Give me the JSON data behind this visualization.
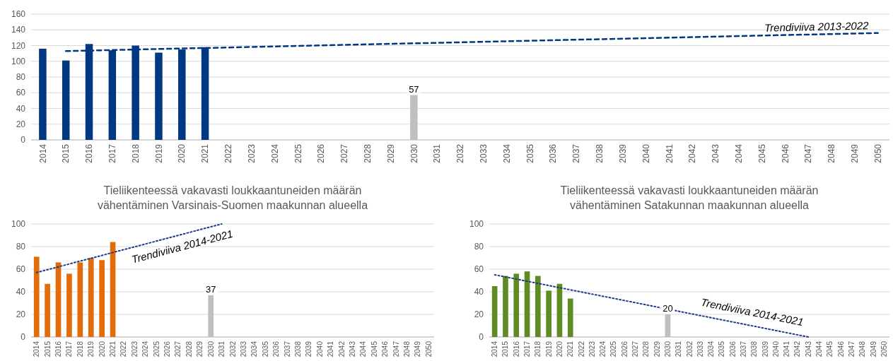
{
  "chart_data": [
    {
      "type": "bar",
      "categories": [
        "2014",
        "2015",
        "2016",
        "2017",
        "2018",
        "2019",
        "2020",
        "2021",
        "2022",
        "2023",
        "2024",
        "2025",
        "2026",
        "2027",
        "2028",
        "2029",
        "2030",
        "2031",
        "2032",
        "2033",
        "2034",
        "2035",
        "2036",
        "2037",
        "2038",
        "2039",
        "2040",
        "2041",
        "2042",
        "2043",
        "2044",
        "2045",
        "2046",
        "2047",
        "2048",
        "2049",
        "2050"
      ],
      "series": [
        {
          "color": "#003882",
          "values": [
            116,
            101,
            122,
            114,
            120,
            111,
            115,
            118,
            null,
            null,
            null,
            null,
            null,
            null,
            null,
            null,
            null,
            null,
            null,
            null,
            null,
            null,
            null,
            null,
            null,
            null,
            null,
            null,
            null,
            null,
            null,
            null,
            null,
            null,
            null,
            null,
            null
          ]
        },
        {
          "color": "#bfbfbf",
          "values": [
            null,
            null,
            null,
            null,
            null,
            null,
            null,
            null,
            null,
            null,
            null,
            null,
            null,
            null,
            null,
            null,
            57,
            null,
            null,
            null,
            null,
            null,
            null,
            null,
            null,
            null,
            null,
            null,
            null,
            null,
            null,
            null,
            null,
            null,
            null,
            null,
            null
          ],
          "value_labels": [
            null,
            null,
            null,
            null,
            null,
            null,
            null,
            null,
            null,
            null,
            null,
            null,
            null,
            null,
            null,
            null,
            "57",
            null,
            null,
            null,
            null,
            null,
            null,
            null,
            null,
            null,
            null,
            null,
            null,
            null,
            null,
            null,
            null,
            null,
            null,
            null,
            null
          ]
        },
        {
          "type": "line",
          "color": "#003882",
          "line_style": "dashed",
          "values": [
            null,
            113,
            null,
            null,
            null,
            null,
            null,
            null,
            null,
            null,
            null,
            null,
            null,
            null,
            null,
            null,
            null,
            null,
            null,
            null,
            null,
            null,
            null,
            null,
            null,
            null,
            null,
            null,
            null,
            null,
            null,
            null,
            null,
            null,
            null,
            null,
            136
          ]
        }
      ],
      "ylim": [
        0,
        160
      ],
      "yticks": [
        0,
        20,
        40,
        60,
        80,
        100,
        120,
        140,
        160
      ],
      "grid": "y",
      "annotations": [
        "Trendiviiva 2013-2022"
      ]
    },
    {
      "type": "bar",
      "title": "Tieliikenteessä vakavasti loukkaantuneiden määrän\nvähentäminen Varsinais-Suomen maakunnan alueella",
      "categories": [
        "2014",
        "2015",
        "2016",
        "2017",
        "2018",
        "2019",
        "2020",
        "2021",
        "2022",
        "2023",
        "2024",
        "2025",
        "2026",
        "2027",
        "2028",
        "2029",
        "2030",
        "2031",
        "2032",
        "2033",
        "2034",
        "2035",
        "2036",
        "2037",
        "2038",
        "2039",
        "2040",
        "2041",
        "2042",
        "2043",
        "2044",
        "2045",
        "2046",
        "2047",
        "2048",
        "2049",
        "2050"
      ],
      "series": [
        {
          "color": "#e36c0a",
          "values": [
            71,
            47,
            66,
            56,
            66,
            70,
            68,
            84,
            null,
            null,
            null,
            null,
            null,
            null,
            null,
            null,
            null,
            null,
            null,
            null,
            null,
            null,
            null,
            null,
            null,
            null,
            null,
            null,
            null,
            null,
            null,
            null,
            null,
            null,
            null,
            null,
            null
          ]
        },
        {
          "color": "#bfbfbf",
          "values": [
            null,
            null,
            null,
            null,
            null,
            null,
            null,
            null,
            null,
            null,
            null,
            null,
            null,
            null,
            null,
            null,
            37,
            null,
            null,
            null,
            null,
            null,
            null,
            null,
            null,
            null,
            null,
            null,
            null,
            null,
            null,
            null,
            null,
            null,
            null,
            null,
            null
          ],
          "value_labels": [
            null,
            null,
            null,
            null,
            null,
            null,
            null,
            null,
            null,
            null,
            null,
            null,
            null,
            null,
            null,
            null,
            "37",
            null,
            null,
            null,
            null,
            null,
            null,
            null,
            null,
            null,
            null,
            null,
            null,
            null,
            null,
            null,
            null,
            null,
            null,
            null,
            null
          ]
        },
        {
          "type": "line",
          "color": "#1f3c88",
          "line_style": "dotted",
          "values": [
            57,
            null,
            null,
            null,
            null,
            null,
            null,
            null,
            null,
            null,
            null,
            null,
            null,
            null,
            null,
            null,
            null,
            100,
            null,
            null,
            null,
            null,
            null,
            null,
            null,
            null,
            null,
            null,
            null,
            null,
            null,
            null,
            null,
            null,
            null,
            null,
            null
          ]
        }
      ],
      "ylim": [
        0,
        100
      ],
      "yticks": [
        0,
        20,
        40,
        60,
        80,
        100
      ],
      "grid": "y",
      "annotations": [
        "Trendiviiva 2014-2021"
      ]
    },
    {
      "type": "bar",
      "title": "Tieliikenteessä vakavasti loukkaantuneiden määrän\nvähentäminen Satakunnan maakunnan alueella",
      "categories": [
        "2014",
        "2015",
        "2016",
        "2017",
        "2018",
        "2019",
        "2020",
        "2021",
        "2022",
        "2023",
        "2024",
        "2025",
        "2026",
        "2027",
        "2028",
        "2029",
        "2030",
        "2031",
        "2032",
        "2033",
        "2034",
        "2035",
        "2036",
        "2037",
        "2038",
        "2039",
        "2040",
        "2041",
        "2042",
        "2043",
        "2044",
        "2045",
        "2046",
        "2047",
        "2048",
        "2049",
        "2050"
      ],
      "series": [
        {
          "color": "#5e8b22",
          "values": [
            45,
            54,
            56,
            58,
            54,
            41,
            47,
            34,
            null,
            null,
            null,
            null,
            null,
            null,
            null,
            null,
            null,
            null,
            null,
            null,
            null,
            null,
            null,
            null,
            null,
            null,
            null,
            null,
            null,
            null,
            null,
            null,
            null,
            null,
            null,
            null,
            null
          ]
        },
        {
          "color": "#bfbfbf",
          "values": [
            null,
            null,
            null,
            null,
            null,
            null,
            null,
            null,
            null,
            null,
            null,
            null,
            null,
            null,
            null,
            null,
            20,
            null,
            null,
            null,
            null,
            null,
            null,
            null,
            null,
            null,
            null,
            null,
            null,
            null,
            null,
            null,
            null,
            null,
            null,
            null,
            null
          ],
          "value_labels": [
            null,
            null,
            null,
            null,
            null,
            null,
            null,
            null,
            null,
            null,
            null,
            null,
            null,
            null,
            null,
            null,
            "20",
            null,
            null,
            null,
            null,
            null,
            null,
            null,
            null,
            null,
            null,
            null,
            null,
            null,
            null,
            null,
            null,
            null,
            null,
            null,
            null
          ]
        },
        {
          "type": "line",
          "color": "#1f3c88",
          "line_style": "dotted",
          "values": [
            55,
            null,
            null,
            null,
            null,
            null,
            null,
            null,
            null,
            null,
            null,
            null,
            null,
            null,
            null,
            null,
            null,
            null,
            null,
            null,
            null,
            null,
            null,
            null,
            null,
            null,
            null,
            null,
            null,
            0,
            null,
            null,
            null,
            null,
            null,
            null,
            null
          ]
        }
      ],
      "ylim": [
        0,
        100
      ],
      "yticks": [
        0,
        20,
        40,
        60,
        80,
        100
      ],
      "grid": "y",
      "annotations": [
        "Trendiviiva 2014-2021"
      ]
    }
  ]
}
